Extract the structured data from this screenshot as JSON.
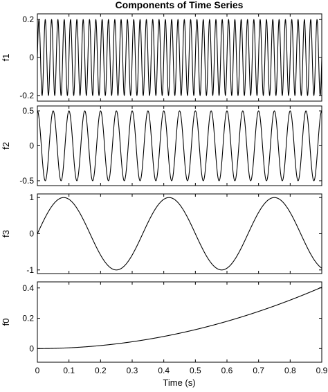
{
  "chart_data": {
    "title": "Components of Time Series",
    "xlabel": "Time (s)",
    "type": "line",
    "x_range": [
      0,
      0.9
    ],
    "x_ticks": [
      0,
      0.1,
      0.2,
      0.3,
      0.4,
      0.5,
      0.6,
      0.7,
      0.8,
      0.9
    ],
    "x_tick_labels": [
      "0",
      "0.1",
      "0.2",
      "0.3",
      "0.4",
      "0.5",
      "0.6",
      "0.7",
      "0.8",
      "0.9"
    ],
    "grid": false,
    "panels": [
      {
        "id": "f1",
        "ylabel": "f1",
        "ylim": [
          -0.23,
          0.23
        ],
        "y_ticks": [
          -0.2,
          0,
          0.2
        ],
        "y_tick_labels": [
          "-0.2",
          "0",
          "0.2"
        ],
        "series": {
          "function": "sine",
          "amplitude": 0.2,
          "frequency_hz": 50,
          "phase_rad": 0,
          "offset": 0
        }
      },
      {
        "id": "f2",
        "ylabel": "f2",
        "ylim": [
          -0.57,
          0.57
        ],
        "y_ticks": [
          -0.5,
          0,
          0.5
        ],
        "y_tick_labels": [
          "-0.5",
          "0",
          "0.5"
        ],
        "series": {
          "function": "sine",
          "amplitude": 0.5,
          "frequency_hz": 20,
          "phase_rad": 1.5708,
          "offset": 0
        }
      },
      {
        "id": "f3",
        "ylabel": "f3",
        "ylim": [
          -1.1,
          1.1
        ],
        "y_ticks": [
          -1,
          0,
          1
        ],
        "y_tick_labels": [
          "-1",
          "0",
          "1"
        ],
        "series": {
          "function": "sine",
          "amplitude": 1,
          "frequency_hz": 3,
          "phase_rad": 0,
          "offset": 0
        }
      },
      {
        "id": "f0",
        "ylabel": "f0",
        "ylim": [
          -0.09,
          0.44
        ],
        "y_ticks": [
          0,
          0.2,
          0.4
        ],
        "y_tick_labels": [
          "0",
          "0.2",
          "0.4"
        ],
        "series": {
          "function": "power",
          "coefficient": 0.5,
          "exponent": 2,
          "offset": 0
        }
      }
    ]
  }
}
